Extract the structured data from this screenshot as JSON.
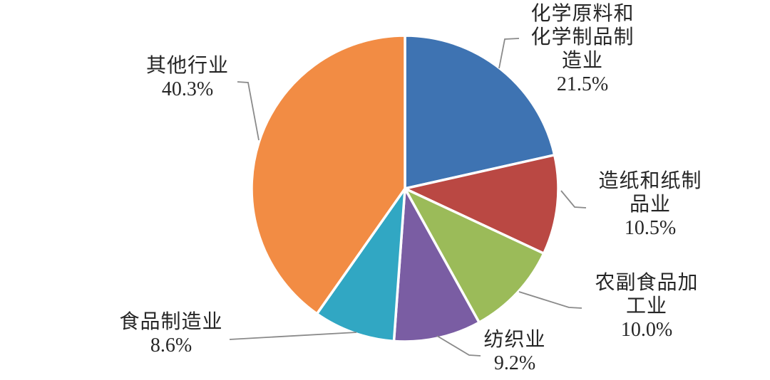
{
  "chart_data": {
    "type": "pie",
    "title": "",
    "legend_position": "none",
    "direction": "clockwise",
    "start_angle_deg": 0,
    "background": "#ffffff",
    "label_text_color": "#262626",
    "leader_line_color": "#8a8a8a",
    "slice_border_color": "#ffffff",
    "slices": [
      {
        "name": "化学原料和化学制品制造业",
        "value": 21.5,
        "pct_label": "21.5%",
        "color": "#3E73B2"
      },
      {
        "name": "造纸和纸制品业",
        "value": 10.5,
        "pct_label": "10.5%",
        "color": "#BA4843"
      },
      {
        "name": "农副食品加工业",
        "value": 10.0,
        "pct_label": "10.0%",
        "color": "#9BBB59"
      },
      {
        "name": "纺织业",
        "value": 9.2,
        "pct_label": "9.2%",
        "color": "#7A5DA3"
      },
      {
        "name": "食品制造业",
        "value": 8.6,
        "pct_label": "8.6%",
        "color": "#31A7C3"
      },
      {
        "name": "其他行业",
        "value": 40.3,
        "pct_label": "40.3%",
        "color": "#F28C44"
      }
    ]
  }
}
